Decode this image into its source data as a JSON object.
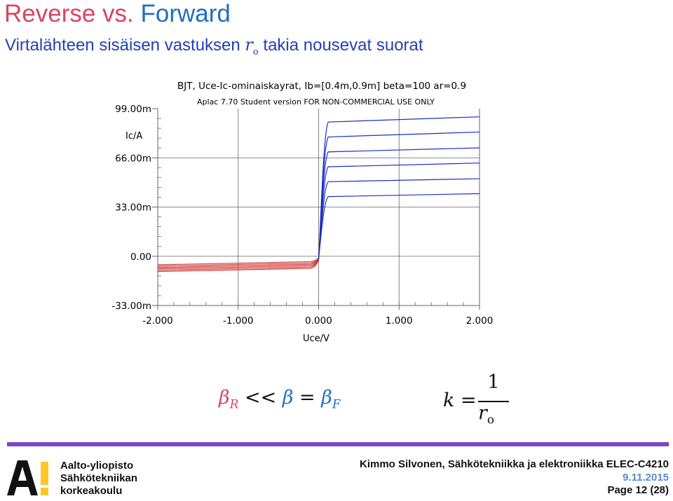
{
  "slide": {
    "title_part1": "Reverse vs.",
    "title_part2": " Forward",
    "subtitle_pre": "Virtalähteen sisäisen vastuksen ",
    "subtitle_r": "r",
    "subtitle_o": "o",
    "subtitle_post": " takia nousevat suorat"
  },
  "formula_beta": {
    "beta": "β",
    "R": "R",
    "ltlt": " << ",
    "eq": " = ",
    "F": "F"
  },
  "formula_k": {
    "k": "k =",
    "num": "1",
    "den_r": "r",
    "den_o": "o"
  },
  "footer": {
    "university": "Aalto-yliopisto",
    "school_line1": "Sähkötekniikan",
    "school_line2": "korkeakoulu",
    "author": "Kimmo Silvonen, Sähkötekniikka ja elektroniikka ELEC-C4210",
    "date": "9.11.2015",
    "page": "Page 12 (28)"
  },
  "colors": {
    "forward": "#1a2fc0",
    "reverse": "#d03838",
    "accent_bar": "#7b47c8"
  },
  "chart_data": {
    "type": "line",
    "title": "BJT, Uce-Ic-ominaiskayrat, Ib=[0.4m,0.9m] beta=100 ar=0.9",
    "subtitle": "Aplac 7.70 Student version FOR NON-COMMERCIAL USE ONLY",
    "xlabel": "Uce/V",
    "ylabel": "Ic/A",
    "xlim": [
      -2.0,
      2.0
    ],
    "ylim": [
      -0.033,
      0.099
    ],
    "x_ticks": [
      -2.0,
      -1.0,
      0.0,
      1.0,
      2.0
    ],
    "x_tick_labels": [
      "-2.000",
      "-1.000",
      "0.000",
      "1.000",
      "2.000"
    ],
    "y_ticks": [
      -0.033,
      0.0,
      0.033,
      0.066,
      0.099
    ],
    "y_tick_labels": [
      "-33.00m",
      "0.00",
      "33.00m",
      "66.00m",
      "99.00m"
    ],
    "grid": true,
    "ib_values": [
      0.0004,
      0.0005,
      0.0006,
      0.0007,
      0.0008,
      0.0009
    ],
    "forward_ic_at_uce0_1": [
      0.04,
      0.05,
      0.06,
      0.07,
      0.08,
      0.09
    ],
    "forward_ic_at_uce2": [
      0.042,
      0.052,
      0.0625,
      0.0727,
      0.0833,
      0.0935
    ],
    "reverse_ic_at_uce_minus0_1": [
      -0.0036,
      -0.0045,
      -0.0054,
      -0.0063,
      -0.0072,
      -0.0081
    ],
    "reverse_ic_at_uce_minus2": [
      -0.0057,
      -0.0066,
      -0.0075,
      -0.0084,
      -0.0093,
      -0.0102
    ]
  }
}
